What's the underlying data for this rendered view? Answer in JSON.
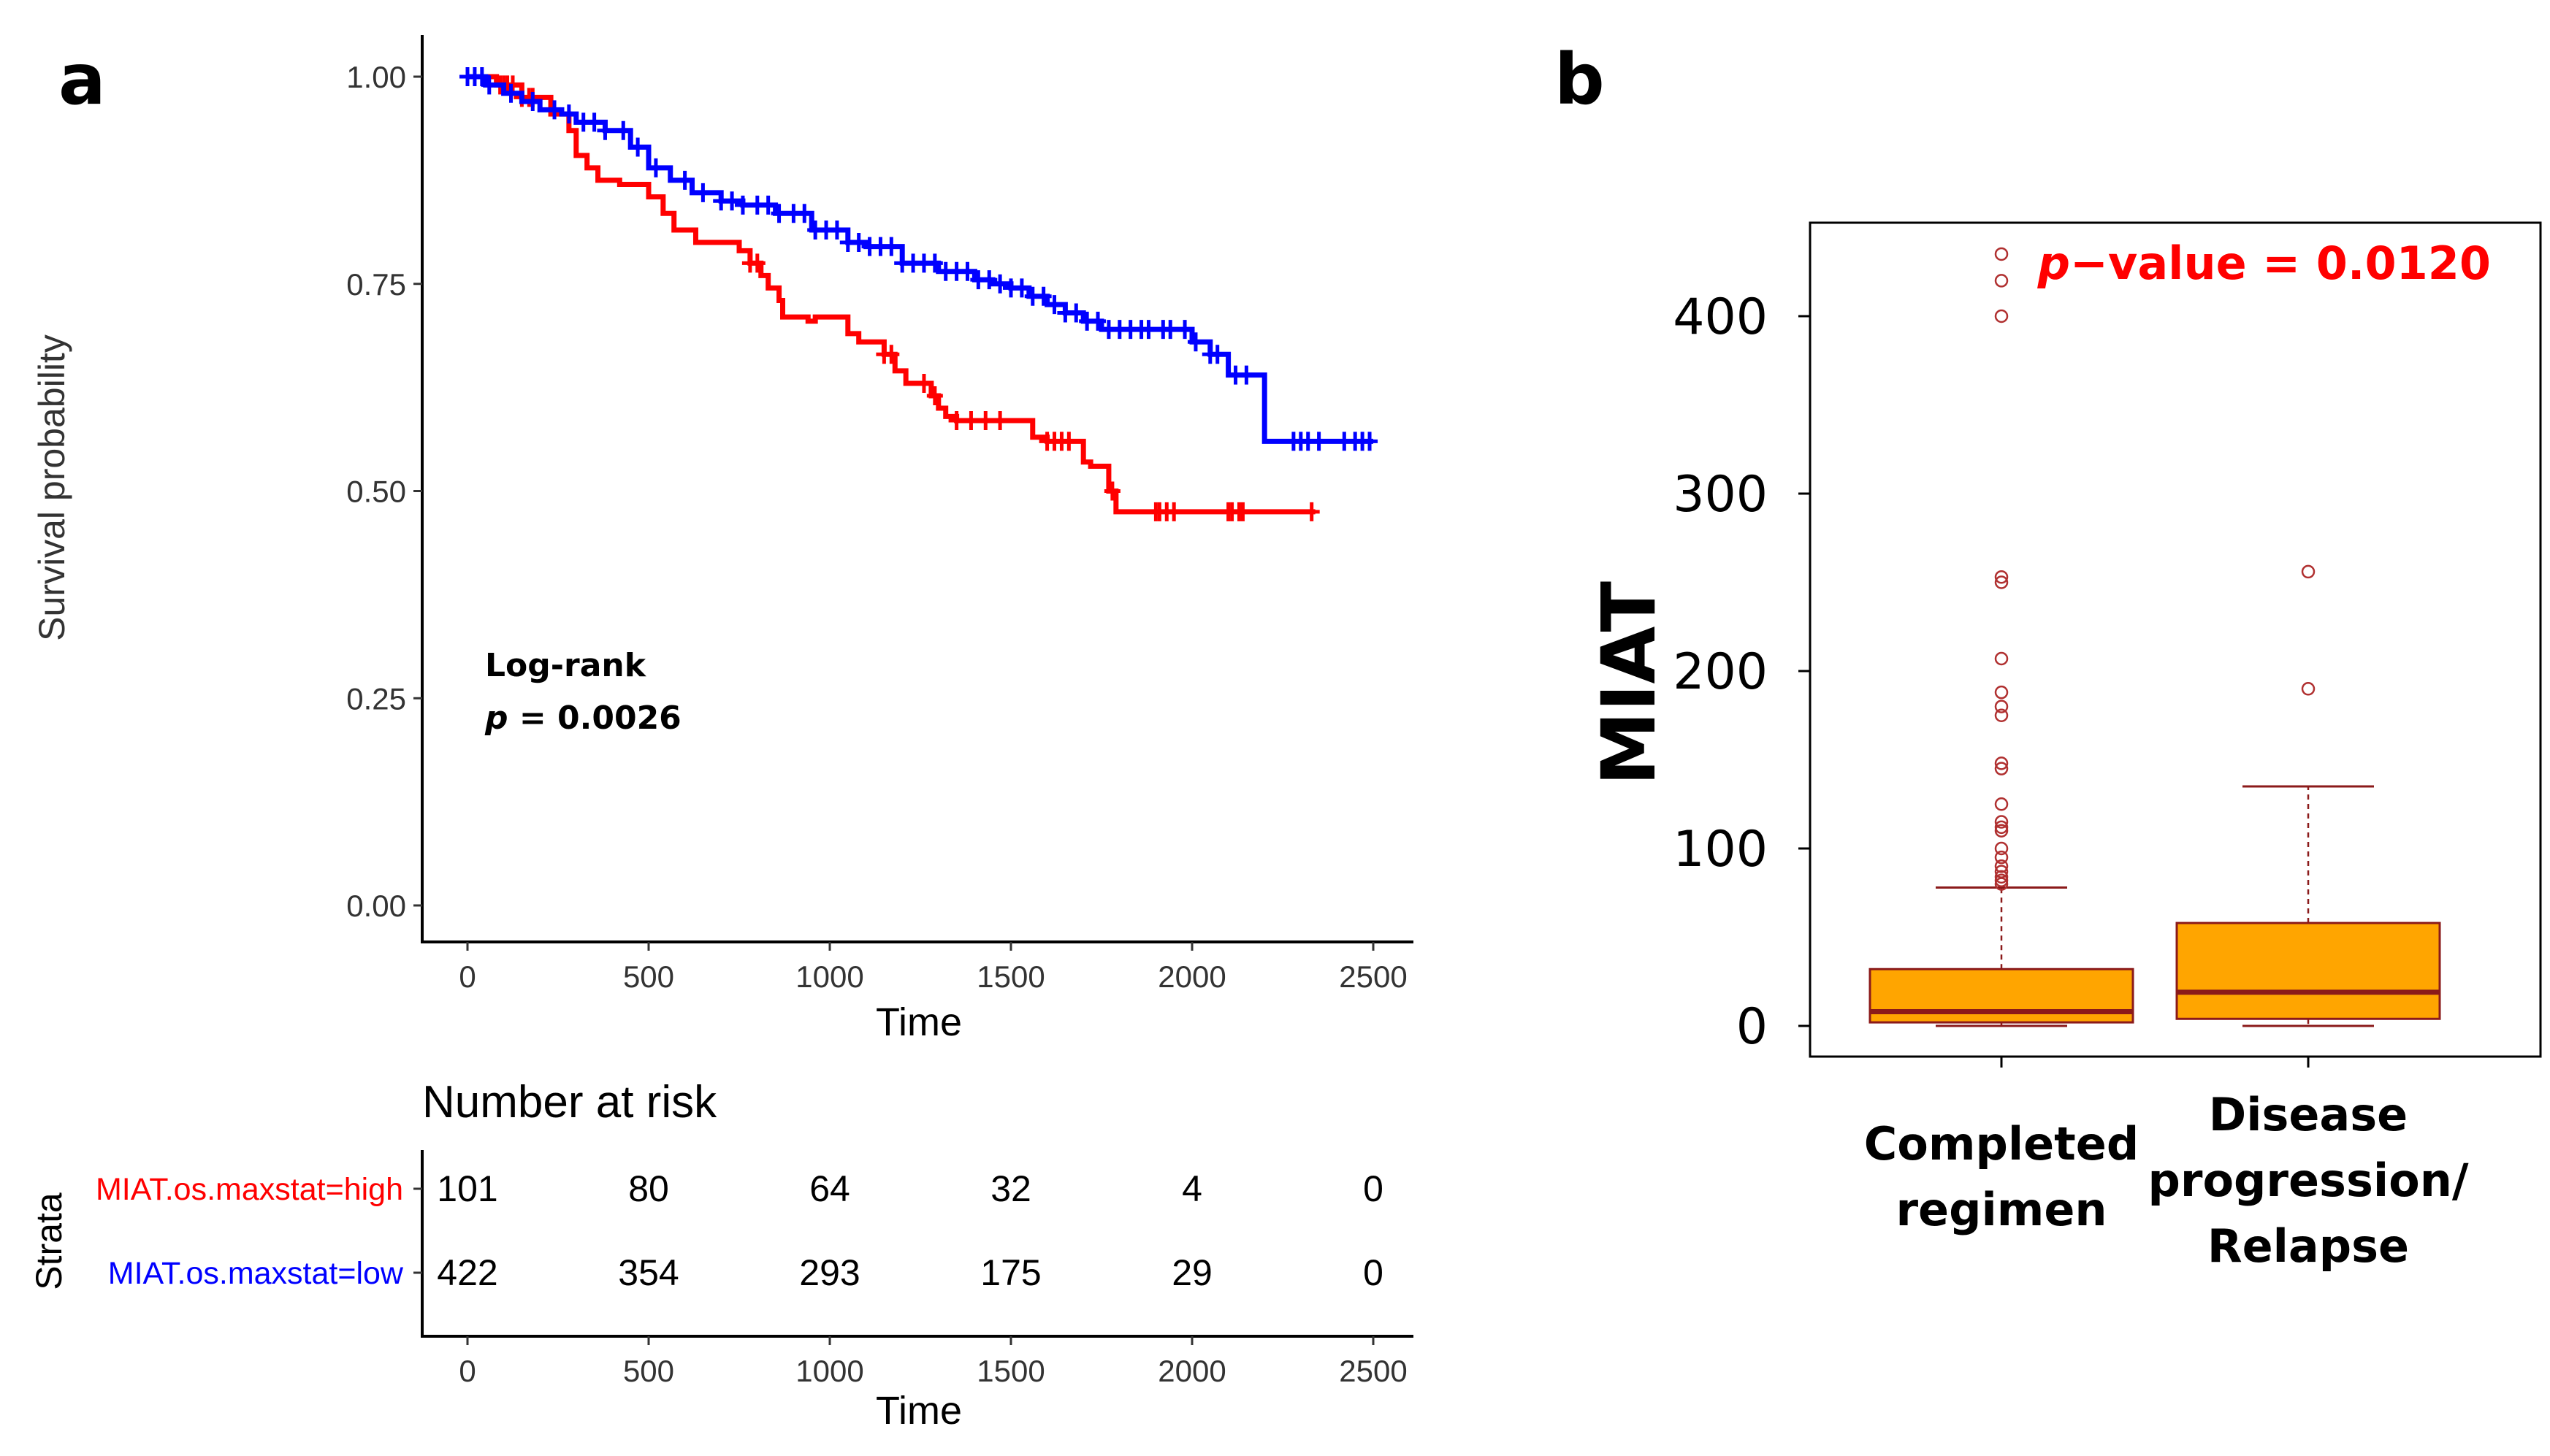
{
  "panels": {
    "a": "a",
    "b": "b"
  },
  "colors": {
    "high": "#ff0000",
    "low": "#0000ff",
    "box_fill": "#ffa500",
    "box_line": "#8b1a1a",
    "outlier": "#b03030",
    "pval_b": "#ff0000"
  },
  "chart_data": [
    {
      "type": "line",
      "title": "",
      "xlabel": "Time",
      "ylabel": "Survival probability",
      "xlim": [
        0,
        2500
      ],
      "ylim": [
        0,
        1
      ],
      "xticks": [
        0,
        500,
        1000,
        1500,
        2000,
        2500
      ],
      "yticks": [
        "0.00",
        "0.25",
        "0.50",
        "0.75",
        "1.00"
      ],
      "annotation": {
        "line1": "Log-rank",
        "p_label": "p",
        "p_value": " = 0.0026"
      },
      "series": [
        {
          "name": "MIAT.os.maxstat=high",
          "color": "#ff0000",
          "x": [
            0,
            80,
            150,
            230,
            280,
            300,
            330,
            360,
            420,
            500,
            540,
            570,
            630,
            700,
            750,
            780,
            810,
            830,
            860,
            870,
            900,
            940,
            960,
            1000,
            1050,
            1080,
            1150,
            1180,
            1210,
            1250,
            1280,
            1300,
            1320,
            1350,
            1400,
            1500,
            1560,
            1600,
            1660,
            1700,
            1720,
            1770,
            1790,
            2000,
            2340
          ],
          "y": [
            1.0,
            0.99,
            0.975,
            0.955,
            0.935,
            0.905,
            0.89,
            0.875,
            0.87,
            0.855,
            0.835,
            0.815,
            0.8,
            0.8,
            0.79,
            0.775,
            0.76,
            0.745,
            0.73,
            0.71,
            0.71,
            0.705,
            0.71,
            0.71,
            0.69,
            0.68,
            0.665,
            0.645,
            0.63,
            0.63,
            0.615,
            0.6,
            0.59,
            0.585,
            0.585,
            0.585,
            0.565,
            0.56,
            0.56,
            0.535,
            0.53,
            0.5,
            0.475,
            0.475,
            0.475
          ],
          "censor_x": [
            90,
            100,
            110,
            125,
            150,
            170,
            180,
            780,
            800,
            1150,
            1170,
            1260,
            1290,
            1350,
            1390,
            1430,
            1470,
            1600,
            1620,
            1640,
            1660,
            1780,
            1900,
            1910,
            1930,
            1950,
            2100,
            2110,
            2130,
            2140,
            2330
          ]
        },
        {
          "name": "MIAT.os.maxstat=low",
          "color": "#0000ff",
          "x": [
            0,
            50,
            100,
            150,
            200,
            260,
            300,
            380,
            450,
            500,
            560,
            620,
            700,
            760,
            850,
            950,
            1050,
            1100,
            1200,
            1300,
            1400,
            1450,
            1500,
            1550,
            1600,
            1650,
            1700,
            1750,
            1800,
            1850,
            1900,
            1950,
            2000,
            2050,
            2100,
            2150,
            2200,
            2250,
            2500
          ],
          "y": [
            1.0,
            0.99,
            0.98,
            0.97,
            0.96,
            0.955,
            0.945,
            0.935,
            0.915,
            0.89,
            0.875,
            0.86,
            0.85,
            0.845,
            0.835,
            0.815,
            0.8,
            0.795,
            0.775,
            0.765,
            0.755,
            0.75,
            0.745,
            0.735,
            0.725,
            0.715,
            0.705,
            0.695,
            0.695,
            0.695,
            0.695,
            0.695,
            0.68,
            0.665,
            0.64,
            0.64,
            0.56,
            0.56,
            0.56
          ],
          "censor_x": [
            0,
            20,
            40,
            60,
            120,
            180,
            240,
            280,
            320,
            350,
            380,
            430,
            470,
            520,
            600,
            650,
            700,
            730,
            760,
            800,
            830,
            860,
            900,
            930,
            960,
            990,
            1020,
            1050,
            1080,
            1110,
            1140,
            1170,
            1200,
            1230,
            1260,
            1290,
            1320,
            1350,
            1380,
            1410,
            1440,
            1470,
            1500,
            1530,
            1560,
            1590,
            1620,
            1650,
            1680,
            1710,
            1740,
            1770,
            1800,
            1830,
            1860,
            1880,
            1920,
            1940,
            1980,
            2010,
            2050,
            2070,
            2120,
            2150,
            2280,
            2300,
            2320,
            2350,
            2420,
            2450,
            2470,
            2490
          ]
        }
      ]
    },
    {
      "type": "table",
      "title": "Number at risk",
      "xlabel": "Time",
      "ylabel": "Strata",
      "xticks": [
        0,
        500,
        1000,
        1500,
        2000,
        2500
      ],
      "rows": [
        {
          "name": "MIAT.os.maxstat=high",
          "color": "#ff0000",
          "values": [
            101,
            80,
            64,
            32,
            4,
            0
          ]
        },
        {
          "name": "MIAT.os.maxstat=low",
          "color": "#0000ff",
          "values": [
            422,
            354,
            293,
            175,
            29,
            0
          ]
        }
      ]
    },
    {
      "type": "box",
      "title": "",
      "ylabel": "MIAT",
      "ylim": [
        -18,
        455
      ],
      "yticks": [
        0,
        100,
        200,
        300,
        400
      ],
      "annotation": {
        "p_label": "p",
        "rest": "−value = 0.0120"
      },
      "categories": [
        {
          "label_lines": [
            "Completed",
            "regimen"
          ],
          "whisker_low": 0,
          "q1": 2,
          "median": 8,
          "q3": 32,
          "whisker_high": 78,
          "outliers": [
            80,
            82,
            84,
            87,
            90,
            95,
            100,
            110,
            112,
            115,
            125,
            145,
            148,
            175,
            180,
            188,
            207,
            250,
            253,
            400,
            420,
            435
          ]
        },
        {
          "label_lines": [
            "Disease",
            "progression/",
            "Relapse"
          ],
          "whisker_low": 0,
          "q1": 4,
          "median": 19,
          "q3": 58,
          "whisker_high": 135,
          "outliers": [
            190,
            256
          ]
        }
      ]
    }
  ]
}
